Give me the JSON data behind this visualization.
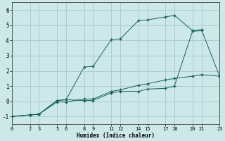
{
  "xlabel": "Humidex (Indice chaleur)",
  "background_color": "#cce8e8",
  "grid_color": "#aacece",
  "line_color": "#1a6060",
  "xlim": [
    0,
    23
  ],
  "ylim": [
    -1.5,
    6.5
  ],
  "yticks": [
    -1,
    0,
    1,
    2,
    3,
    4,
    5,
    6
  ],
  "xticks": [
    0,
    2,
    3,
    5,
    6,
    8,
    9,
    11,
    12,
    14,
    15,
    17,
    18,
    20,
    21,
    23
  ],
  "series1_x": [
    0,
    2,
    3,
    5,
    6,
    8,
    9,
    11,
    12,
    14,
    15,
    17,
    18,
    20,
    21,
    23
  ],
  "series1_y": [
    -1,
    -0.9,
    -0.85,
    -0.05,
    -0.05,
    0.15,
    0.15,
    0.65,
    0.75,
    1.05,
    1.15,
    1.4,
    1.5,
    1.65,
    1.75,
    1.65
  ],
  "series2_x": [
    0,
    2,
    3,
    5,
    6,
    8,
    9,
    11,
    12,
    14,
    15,
    17,
    18,
    20,
    21,
    23
  ],
  "series2_y": [
    -1,
    -0.9,
    -0.85,
    0.05,
    0.1,
    2.25,
    2.3,
    4.05,
    4.1,
    5.3,
    5.35,
    5.55,
    5.65,
    4.65,
    4.7,
    1.65
  ],
  "series3_x": [
    0,
    2,
    3,
    5,
    6,
    8,
    9,
    11,
    12,
    14,
    15,
    17,
    18,
    20,
    21
  ],
  "series3_y": [
    -1,
    -0.9,
    -0.85,
    0.05,
    0.1,
    0.05,
    0.05,
    0.55,
    0.65,
    0.65,
    0.8,
    0.85,
    1.0,
    4.6,
    4.65
  ]
}
